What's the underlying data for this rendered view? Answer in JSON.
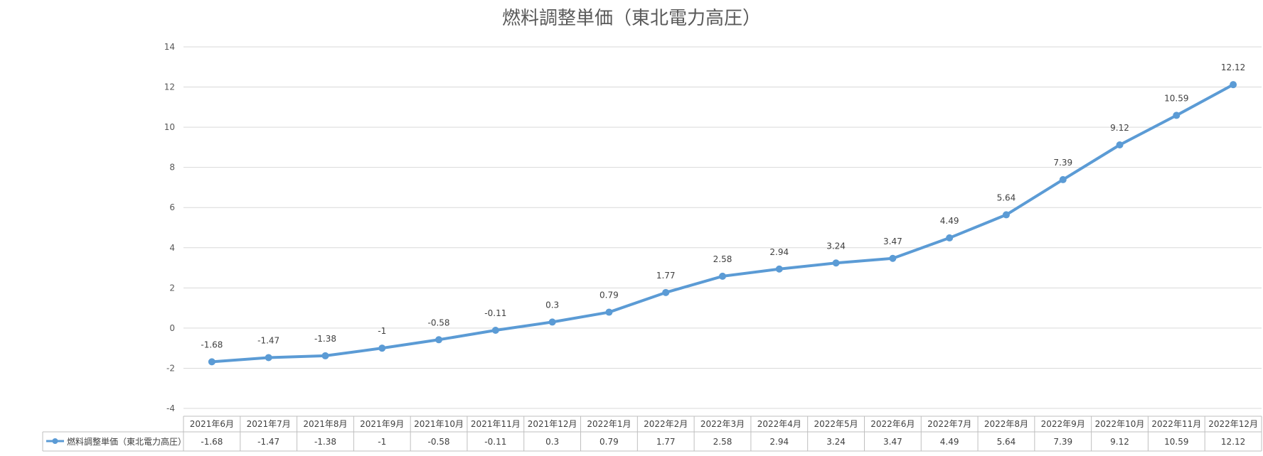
{
  "chart_data": {
    "type": "line",
    "title": "燃料調整単価（東北電力高圧）",
    "categories": [
      "2021年6月",
      "2021年7月",
      "2021年8月",
      "2021年9月",
      "2021年10月",
      "2021年11月",
      "2021年12月",
      "2022年1月",
      "2022年2月",
      "2022年3月",
      "2022年4月",
      "2022年5月",
      "2022年6月",
      "2022年7月",
      "2022年8月",
      "2022年9月",
      "2022年10月",
      "2022年11月",
      "2022年12月"
    ],
    "series": [
      {
        "name": "燃料調整単価（東北電力高圧）",
        "values": [
          -1.68,
          -1.47,
          -1.38,
          -1,
          -0.58,
          -0.11,
          0.3,
          0.79,
          1.77,
          2.58,
          2.94,
          3.24,
          3.47,
          4.49,
          5.64,
          7.39,
          9.12,
          10.59,
          12.12
        ],
        "value_labels": [
          "-1.68",
          "-1.47",
          "-1.38",
          "-1",
          "-0.58",
          "-0.11",
          "0.3",
          "0.79",
          "1.77",
          "2.58",
          "2.94",
          "3.24",
          "3.47",
          "4.49",
          "5.64",
          "7.39",
          "9.12",
          "10.59",
          "12.12"
        ],
        "color": "#5b9bd5"
      }
    ],
    "ylim": [
      -4,
      14
    ],
    "y_ticks": [
      "14",
      "12",
      "10",
      "8",
      "6",
      "4",
      "2",
      "0",
      "-2",
      "-4"
    ],
    "grid": true,
    "data_labels": true,
    "legend": "data-table"
  }
}
